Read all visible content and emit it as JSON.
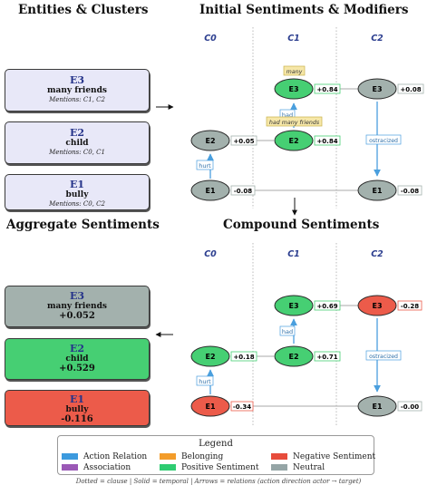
{
  "titles": {
    "entities": "Entities & Clusters",
    "initial": "Initial Sentiments & Modifiers",
    "aggregate": "Aggregate Sentiments",
    "compound": "Compound Sentiments"
  },
  "clauses": [
    "C0",
    "C1",
    "C2"
  ],
  "entities": [
    {
      "id": "E3",
      "name": "many friends",
      "mentions": "Mentions: C1, C2"
    },
    {
      "id": "E2",
      "name": "child",
      "mentions": "Mentions: C0, C1"
    },
    {
      "id": "E1",
      "name": "bully",
      "mentions": "Mentions: C0, C2"
    }
  ],
  "aggregates": [
    {
      "id": "E3",
      "name": "many friends",
      "value": "+0.052",
      "color": "#a3b1ad"
    },
    {
      "id": "E2",
      "name": "child",
      "value": "+0.529",
      "color": "#46cf73"
    },
    {
      "id": "E1",
      "name": "bully",
      "value": "-0.116",
      "color": "#ec5b4a"
    }
  ],
  "initial": {
    "nodes": [
      {
        "key": "c1e3",
        "label": "E3",
        "value": "+0.84",
        "sentiment": "positive"
      },
      {
        "key": "c2e3",
        "label": "E3",
        "value": "+0.08",
        "sentiment": "neutral"
      },
      {
        "key": "c0e2",
        "label": "E2",
        "value": "+0.05",
        "sentiment": "neutral"
      },
      {
        "key": "c1e2",
        "label": "E2",
        "value": "+0.84",
        "sentiment": "positive"
      },
      {
        "key": "c0e1",
        "label": "E1",
        "value": "-0.08",
        "sentiment": "neutral"
      },
      {
        "key": "c2e1",
        "label": "E1",
        "value": "-0.08",
        "sentiment": "neutral"
      }
    ],
    "modifiers": [
      "many",
      "had many friends"
    ],
    "relations": [
      "hurt",
      "had",
      "ostracized"
    ]
  },
  "compound": {
    "nodes": [
      {
        "key": "c1e3",
        "label": "E3",
        "value": "+0.69",
        "sentiment": "positive"
      },
      {
        "key": "c2e3",
        "label": "E3",
        "value": "-0.28",
        "sentiment": "negative"
      },
      {
        "key": "c0e2",
        "label": "E2",
        "value": "+0.18",
        "sentiment": "positive"
      },
      {
        "key": "c1e2",
        "label": "E2",
        "value": "+0.71",
        "sentiment": "positive"
      },
      {
        "key": "c0e1",
        "label": "E1",
        "value": "-0.34",
        "sentiment": "negative"
      },
      {
        "key": "c2e1",
        "label": "E1",
        "value": "-0.00",
        "sentiment": "neutral"
      }
    ],
    "relations": [
      "hurt",
      "had",
      "ostracized"
    ]
  },
  "colors": {
    "positive": "#46cf73",
    "negative": "#ec5b4a",
    "neutral": "#a3b1ad",
    "relation": "#4a9fde",
    "modifier_bg": "#f6e7a8"
  },
  "legend": {
    "title": "Legend",
    "items": [
      {
        "label": "Action Relation",
        "color": "#3c9ade"
      },
      {
        "label": "Belonging",
        "color": "#f39c2a"
      },
      {
        "label": "Negative Sentiment",
        "color": "#e74c3c"
      },
      {
        "label": "Association",
        "color": "#9b59b6"
      },
      {
        "label": "Positive Sentiment",
        "color": "#2ecc71"
      },
      {
        "label": "Neutral",
        "color": "#95a5a6"
      }
    ]
  },
  "caption": "Dotted = clause | Solid = temporal | Arrows = relations (action direction actor → target)"
}
